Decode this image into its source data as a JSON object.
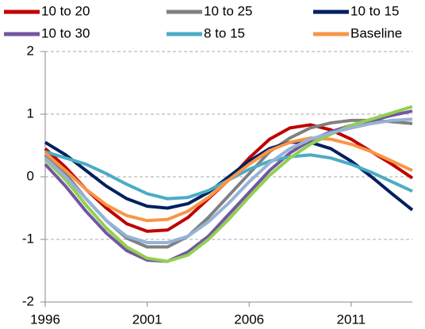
{
  "chart_data": {
    "type": "line",
    "x": [
      1996,
      1997,
      1998,
      1999,
      2000,
      2001,
      2002,
      2003,
      2004,
      2005,
      2006,
      2007,
      2008,
      2009,
      2010,
      2011,
      2012,
      2013,
      2014
    ],
    "xlim": [
      1996,
      2014
    ],
    "xticks": [
      1996,
      2001,
      2006,
      2011
    ],
    "ylim": [
      -2,
      2
    ],
    "yticks": [
      -2,
      -1,
      0,
      1,
      2
    ],
    "grid": true,
    "series": [
      {
        "name": "10 to 20",
        "color": "#c00000",
        "values": [
          0.45,
          0.15,
          -0.2,
          -0.5,
          -0.75,
          -0.87,
          -0.85,
          -0.65,
          -0.35,
          -0.05,
          0.3,
          0.6,
          0.78,
          0.83,
          0.75,
          0.6,
          0.4,
          0.2,
          -0.02
        ]
      },
      {
        "name": "10 to 25",
        "color": "#808080",
        "values": [
          0.35,
          0.05,
          -0.35,
          -0.7,
          -0.98,
          -1.12,
          -1.12,
          -0.95,
          -0.65,
          -0.3,
          0.05,
          0.4,
          0.62,
          0.78,
          0.86,
          0.9,
          0.9,
          0.88,
          0.85
        ]
      },
      {
        "name": "10 to 15",
        "color": "#002060",
        "values": [
          0.55,
          0.35,
          0.1,
          -0.15,
          -0.35,
          -0.47,
          -0.5,
          -0.43,
          -0.25,
          0,
          0.25,
          0.45,
          0.55,
          0.55,
          0.45,
          0.25,
          0,
          -0.27,
          -0.53
        ]
      },
      {
        "name": "10 to 30",
        "color": "#7356a0",
        "values": [
          0.2,
          -0.15,
          -0.55,
          -0.9,
          -1.18,
          -1.33,
          -1.35,
          -1.2,
          -0.95,
          -0.6,
          -0.25,
          0.1,
          0.38,
          0.58,
          0.72,
          0.82,
          0.9,
          0.98,
          1.05
        ]
      },
      {
        "name": "8 to 15",
        "color": "#4bacc6",
        "values": [
          0.4,
          0.3,
          0.2,
          0.05,
          -0.12,
          -0.27,
          -0.35,
          -0.33,
          -0.22,
          -0.05,
          0.12,
          0.25,
          0.32,
          0.35,
          0.3,
          0.2,
          0.07,
          -0.08,
          -0.23
        ]
      },
      {
        "name": "Baseline",
        "color": "#f79646",
        "values": [
          0.38,
          0.1,
          -0.2,
          -0.45,
          -0.62,
          -0.7,
          -0.68,
          -0.55,
          -0.33,
          -0.05,
          0.2,
          0.42,
          0.55,
          0.62,
          0.6,
          0.52,
          0.4,
          0.25,
          0.1
        ]
      },
      {
        "color": "#92d050",
        "values": [
          0.28,
          -0.05,
          -0.45,
          -0.82,
          -1.12,
          -1.3,
          -1.35,
          -1.25,
          -1.0,
          -0.68,
          -0.32,
          0.02,
          0.3,
          0.52,
          0.68,
          0.82,
          0.92,
          1.02,
          1.12
        ]
      },
      {
        "color": "#95b3d7",
        "values": [
          0.3,
          0.0,
          -0.35,
          -0.7,
          -0.95,
          -1.05,
          -1.05,
          -0.95,
          -0.72,
          -0.42,
          -0.08,
          0.22,
          0.45,
          0.6,
          0.7,
          0.78,
          0.85,
          0.9,
          0.92
        ]
      }
    ]
  }
}
